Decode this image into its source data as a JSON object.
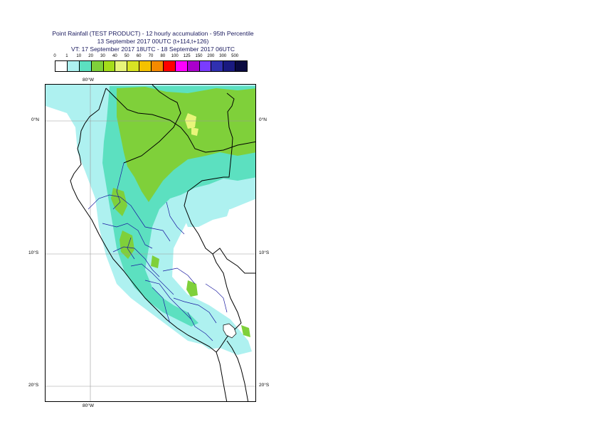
{
  "title": {
    "line1": "Point Rainfall (TEST PRODUCT) - 12 hourly accumulation - 95th Percentile",
    "line2": "13 September 2017 00UTC (t+114,t+126)",
    "line3": "VT: 17 September 2017 18UTC - 18 September 2017 06UTC"
  },
  "legend": {
    "thresholds": [
      "0",
      "1",
      "10",
      "20",
      "30",
      "40",
      "50",
      "60",
      "70",
      "80",
      "100",
      "125",
      "150",
      "200",
      "300",
      "500"
    ],
    "colors": [
      "#ffffff",
      "#aef1f0",
      "#5ce0c0",
      "#7fd03a",
      "#a5dd1a",
      "#e8f57a",
      "#d7e424",
      "#f5c200",
      "#f58a00",
      "#ff0000",
      "#ff00ff",
      "#aa00cc",
      "#7a3cff",
      "#3030b0",
      "#1a1a80",
      "#0a0a40"
    ]
  },
  "map": {
    "lat_labels": {
      "north": "0°N",
      "south10": "10°S",
      "south20": "20°S"
    },
    "lon_labels": {
      "top": "80°W",
      "bottom": "80°W"
    },
    "colors": {
      "ocean_light": "#aef1f0",
      "land_mid": "#5ce0c0",
      "land_heavy": "#7fd03a",
      "peak": "#e8f57a",
      "border": "#000000",
      "regions": "#0000aa",
      "gridline": "#999999"
    }
  }
}
